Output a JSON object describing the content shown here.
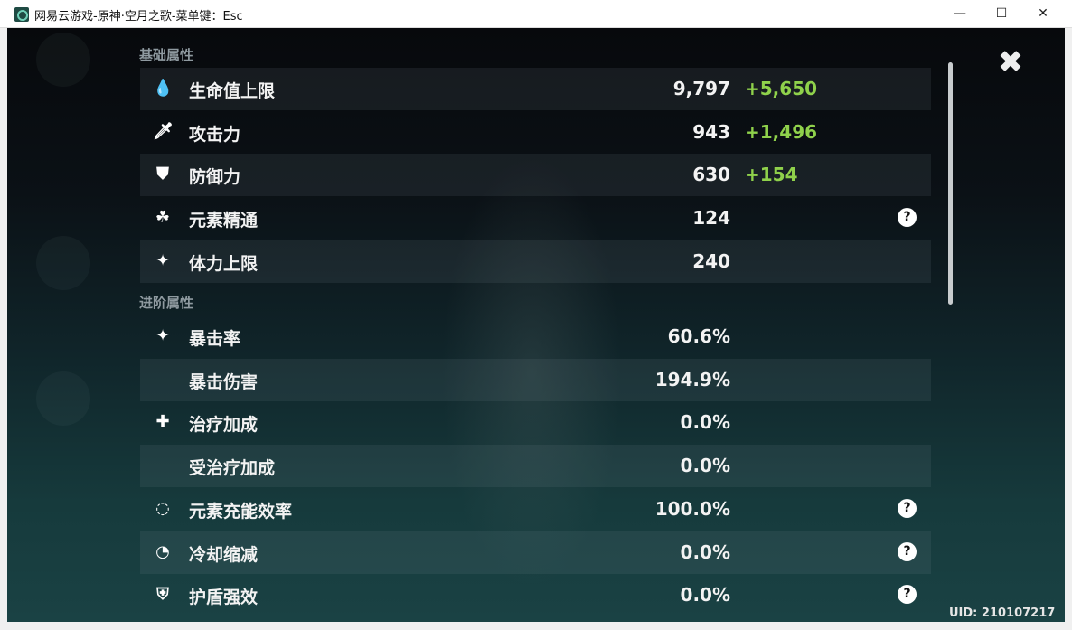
{
  "window": {
    "title": "网易云游戏-原神·空月之歌-菜单键：Esc",
    "minimize": "—",
    "maximize": "☐",
    "close": "✕"
  },
  "sections": {
    "basic": "基础属性",
    "advanced": "进阶属性"
  },
  "basic_stats": [
    {
      "icon": "water-drop-icon",
      "glyph": "💧",
      "label": "生命值上限",
      "value": "9,797",
      "bonus": "+5,650",
      "help": false
    },
    {
      "icon": "sword-icon",
      "glyph": "🗡",
      "label": "攻击力",
      "value": "943",
      "bonus": "+1,496",
      "help": false
    },
    {
      "icon": "shield-icon",
      "glyph": "⛊",
      "label": "防御力",
      "value": "630",
      "bonus": "+154",
      "help": false
    },
    {
      "icon": "elemental-mastery-icon",
      "glyph": "☘",
      "label": "元素精通",
      "value": "124",
      "bonus": "",
      "help": true
    },
    {
      "icon": "stamina-icon",
      "glyph": "✦",
      "label": "体力上限",
      "value": "240",
      "bonus": "",
      "help": false
    }
  ],
  "advanced_stats": [
    {
      "icon": "crit-star-icon",
      "glyph": "✦",
      "label": "暴击率",
      "value": "60.6%",
      "help": false
    },
    {
      "icon": "",
      "glyph": "",
      "label": "暴击伤害",
      "value": "194.9%",
      "help": false
    },
    {
      "icon": "healing-cross-icon",
      "glyph": "✚",
      "label": "治疗加成",
      "value": "0.0%",
      "help": false
    },
    {
      "icon": "",
      "glyph": "",
      "label": "受治疗加成",
      "value": "0.0%",
      "help": false
    },
    {
      "icon": "energy-recharge-icon",
      "glyph": "◌",
      "label": "元素充能效率",
      "value": "100.0%",
      "help": true
    },
    {
      "icon": "cooldown-icon",
      "glyph": "◔",
      "label": "冷却缩减",
      "value": "0.0%",
      "help": true
    },
    {
      "icon": "shield-strength-icon",
      "glyph": "⛨",
      "label": "护盾强效",
      "value": "0.0%",
      "help": true
    }
  ],
  "help_glyph": "?",
  "close_glyph": "✖",
  "uid": "UID: 210107217",
  "colors": {
    "bonus": "#8fd14b",
    "text": "#f3f3f3",
    "section": "#8f9aa0"
  }
}
